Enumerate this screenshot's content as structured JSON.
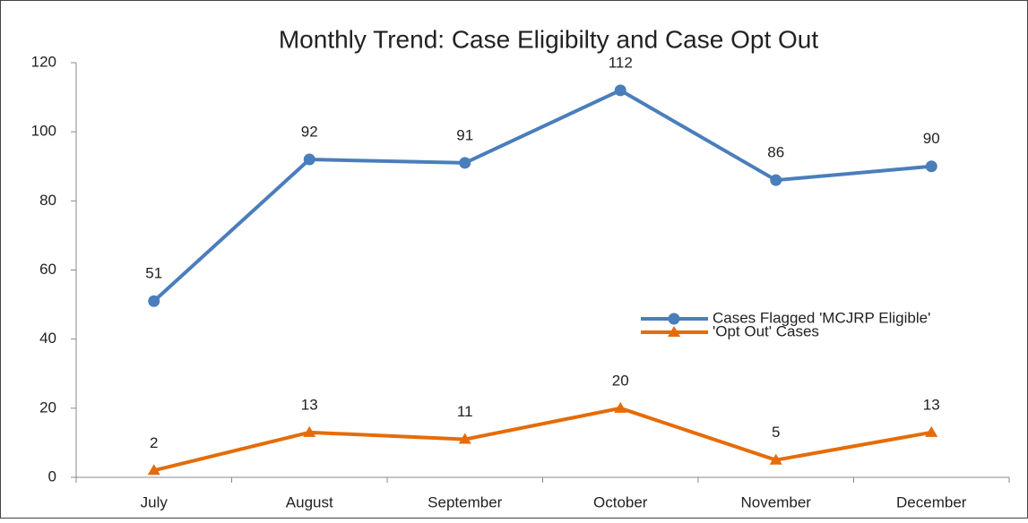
{
  "chart_data": {
    "type": "line",
    "title": "Monthly Trend: Case Eligibilty and Case Opt Out",
    "categories": [
      "July",
      "August",
      "September",
      "October",
      "November",
      "December"
    ],
    "series": [
      {
        "name": "Cases Flagged 'MCJRP Eligible'",
        "color": "#4a7ebb",
        "marker": "circle",
        "values": [
          51,
          92,
          91,
          112,
          86,
          90
        ]
      },
      {
        "name": "'Opt Out' Cases",
        "color": "#e46c0a",
        "marker": "triangle",
        "values": [
          2,
          13,
          11,
          20,
          5,
          13
        ]
      }
    ],
    "ylim": [
      0,
      120
    ],
    "yticks": [
      0,
      20,
      40,
      60,
      80,
      100,
      120
    ],
    "grid": false,
    "legend": "right"
  }
}
